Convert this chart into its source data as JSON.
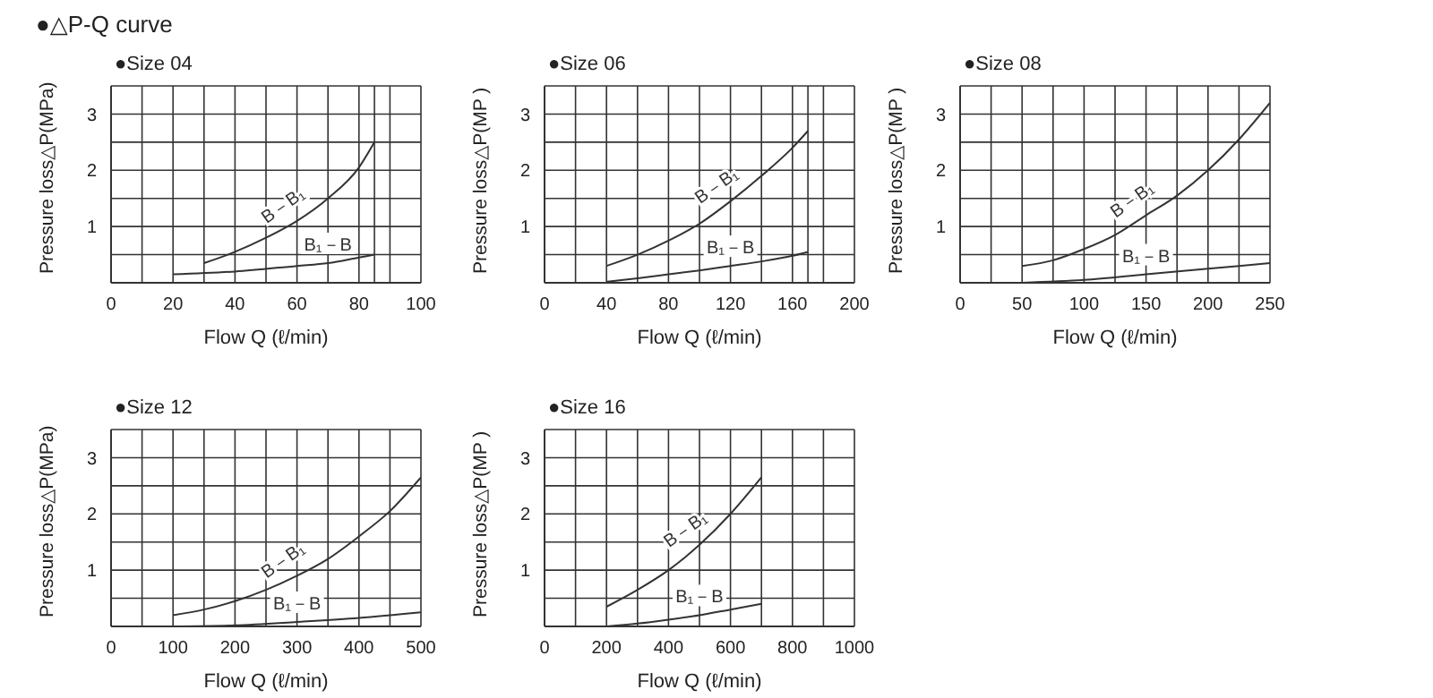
{
  "chart_data": [
    {
      "type": "line",
      "title": "●△P-Q curve",
      "subtitle": "●Size 04",
      "xlabel": "Flow Q (ℓ/min)",
      "ylabel": "Pressure loss△P(MPa)",
      "xlim": [
        0,
        100
      ],
      "xticks": [
        0,
        {
          "value": 10,
          "label": null
        },
        20,
        {
          "value": 30,
          "label": null
        },
        40,
        {
          "value": 50,
          "label": null
        },
        60,
        {
          "value": 70,
          "label": null
        },
        80,
        {
          "value": 85,
          "label": null
        },
        {
          "value": 90,
          "label": null
        },
        100
      ],
      "ylim": [
        0,
        3.5
      ],
      "yticks": [
        {
          "value": 0.5,
          "label": null
        },
        1,
        {
          "value": 1.5,
          "label": null
        },
        2,
        {
          "value": 2.5,
          "label": null
        },
        3,
        {
          "value": 3.5,
          "label": null
        }
      ],
      "grid": true,
      "legend": false,
      "line_style": "solid",
      "series": [
        {
          "name": "B－B₁",
          "color": "#333333",
          "x": [
            30,
            40,
            50,
            60,
            70,
            80,
            85
          ],
          "values": [
            0.35,
            0.55,
            0.8,
            1.1,
            1.5,
            2.05,
            2.5
          ]
        },
        {
          "name": "B₁－B",
          "color": "#333333",
          "x": [
            20,
            40,
            60,
            70,
            80,
            85
          ],
          "values": [
            0.15,
            0.2,
            0.3,
            0.35,
            0.45,
            0.5
          ]
        }
      ]
    },
    {
      "type": "line",
      "subtitle": "●Size 06",
      "xlabel": "Flow Q (ℓ/min)",
      "ylabel": "Pressure loss△P(MP )",
      "xlim": [
        0,
        200
      ],
      "xticks": [
        0,
        {
          "value": 20,
          "label": null
        },
        40,
        {
          "value": 60,
          "label": null
        },
        80,
        {
          "value": 100,
          "label": null
        },
        120,
        {
          "value": 140,
          "label": null
        },
        160,
        {
          "value": 170,
          "label": null
        },
        {
          "value": 180,
          "label": null
        },
        200
      ],
      "ylim": [
        0,
        3.5
      ],
      "yticks": [
        {
          "value": 0.5,
          "label": null
        },
        1,
        {
          "value": 1.5,
          "label": null
        },
        2,
        {
          "value": 2.5,
          "label": null
        },
        3,
        {
          "value": 3.5,
          "label": null
        }
      ],
      "grid": true,
      "legend": false,
      "line_style": "solid",
      "series": [
        {
          "name": "B－B₁",
          "color": "#333333",
          "x": [
            40,
            60,
            80,
            100,
            120,
            140,
            160,
            170
          ],
          "values": [
            0.3,
            0.5,
            0.75,
            1.05,
            1.45,
            1.9,
            2.4,
            2.7
          ]
        },
        {
          "name": "B₁－B",
          "color": "#333333",
          "x": [
            40,
            60,
            80,
            100,
            120,
            140,
            160,
            170
          ],
          "values": [
            0.02,
            0.08,
            0.15,
            0.22,
            0.3,
            0.38,
            0.48,
            0.55
          ]
        }
      ]
    },
    {
      "type": "line",
      "subtitle": "●Size 08",
      "xlabel": "Flow Q (ℓ/min)",
      "ylabel": "Pressure loss△P(MP )",
      "xlim": [
        0,
        250
      ],
      "xticks": [
        0,
        {
          "value": 25,
          "label": null
        },
        50,
        {
          "value": 75,
          "label": null
        },
        100,
        {
          "value": 125,
          "label": null
        },
        150,
        {
          "value": 175,
          "label": null
        },
        200,
        {
          "value": 225,
          "label": null
        },
        250
      ],
      "ylim": [
        0,
        3.5
      ],
      "yticks": [
        {
          "value": 0.5,
          "label": null
        },
        1,
        {
          "value": 1.5,
          "label": null
        },
        2,
        {
          "value": 2.5,
          "label": null
        },
        3,
        {
          "value": 3.5,
          "label": null
        }
      ],
      "grid": true,
      "legend": false,
      "line_style": "solid",
      "series": [
        {
          "name": "B－B₁",
          "color": "#333333",
          "x": [
            50,
            75,
            100,
            125,
            150,
            175,
            200,
            225,
            250
          ],
          "values": [
            0.3,
            0.4,
            0.6,
            0.85,
            1.2,
            1.55,
            2.0,
            2.55,
            3.2
          ]
        },
        {
          "name": "B₁－B",
          "color": "#333333",
          "x": [
            50,
            100,
            150,
            200,
            250
          ],
          "values": [
            0,
            0.05,
            0.15,
            0.25,
            0.35
          ]
        }
      ]
    },
    {
      "type": "line",
      "subtitle": "●Size 12",
      "xlabel": "Flow Q (ℓ/min)",
      "ylabel": "Pressure loss△P(MPa)",
      "xlim": [
        0,
        500
      ],
      "xticks": [
        0,
        {
          "value": 50,
          "label": null
        },
        100,
        {
          "value": 150,
          "label": null
        },
        200,
        {
          "value": 250,
          "label": null
        },
        300,
        {
          "value": 350,
          "label": null
        },
        400,
        {
          "value": 450,
          "label": null
        },
        500
      ],
      "ylim": [
        0,
        3.5
      ],
      "yticks": [
        {
          "value": 0.5,
          "label": null
        },
        1,
        {
          "value": 1.5,
          "label": null
        },
        2,
        {
          "value": 2.5,
          "label": null
        },
        3,
        {
          "value": 3.5,
          "label": null
        }
      ],
      "grid": true,
      "legend": false,
      "line_style": "solid",
      "series": [
        {
          "name": "B－B₁",
          "color": "#333333",
          "x": [
            100,
            150,
            200,
            250,
            300,
            350,
            400,
            450,
            500
          ],
          "values": [
            0.2,
            0.3,
            0.45,
            0.65,
            0.9,
            1.2,
            1.6,
            2.05,
            2.65
          ]
        },
        {
          "name": "B₁－B",
          "color": "#333333",
          "x": [
            100,
            200,
            300,
            400,
            500
          ],
          "values": [
            0,
            0.02,
            0.08,
            0.15,
            0.25
          ]
        }
      ]
    },
    {
      "type": "line",
      "subtitle": "●Size 16",
      "xlabel": "Flow Q (ℓ/min)",
      "ylabel": "Pressure loss△P(MP )",
      "xlim": [
        0,
        1000
      ],
      "xticks": [
        0,
        {
          "value": 100,
          "label": null
        },
        200,
        {
          "value": 300,
          "label": null
        },
        400,
        {
          "value": 500,
          "label": null
        },
        600,
        {
          "value": 700,
          "label": null
        },
        800,
        {
          "value": 900,
          "label": null
        },
        1000
      ],
      "ylim": [
        0,
        3.5
      ],
      "yticks": [
        {
          "value": 0.5,
          "label": null
        },
        1,
        {
          "value": 1.5,
          "label": null
        },
        2,
        {
          "value": 2.5,
          "label": null
        },
        3,
        {
          "value": 3.5,
          "label": null
        }
      ],
      "grid": true,
      "legend": false,
      "line_style": "solid",
      "series": [
        {
          "name": "B－B₁",
          "color": "#333333",
          "x": [
            200,
            300,
            400,
            500,
            600,
            700
          ],
          "values": [
            0.35,
            0.65,
            1.0,
            1.45,
            2.0,
            2.65
          ]
        },
        {
          "name": "B₁－B",
          "color": "#333333",
          "x": [
            200,
            300,
            400,
            500,
            600,
            700
          ],
          "values": [
            0,
            0.05,
            0.12,
            0.2,
            0.3,
            0.4
          ]
        }
      ]
    }
  ]
}
